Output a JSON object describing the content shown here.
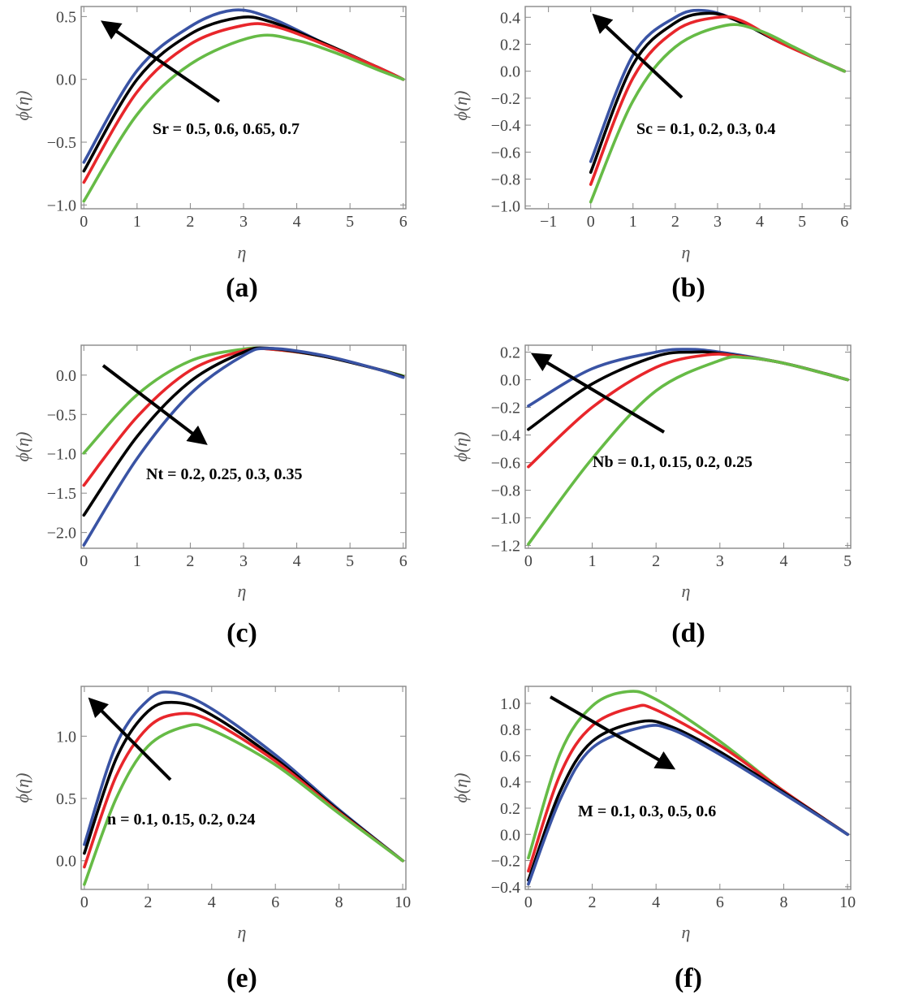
{
  "colors": {
    "blue": "#3953a4",
    "black": "#000000",
    "red": "#e8262b",
    "green": "#66bb46"
  },
  "chart_data": [
    {
      "type": "line",
      "caption": "(a)",
      "xlabel": "η",
      "ylabel": "ϕ(η)",
      "annotation": "Sr = 0.5, 0.6, 0.65, 0.7",
      "arrow_direction": "up-left",
      "xlim": [
        -0.05,
        6.05
      ],
      "ylim": [
        -1.03,
        0.58
      ],
      "xticks": [
        0,
        1,
        2,
        3,
        4,
        5,
        6
      ],
      "xtick_labels": [
        "0",
        "1",
        "2",
        "3",
        "4",
        "5",
        "6"
      ],
      "yticks": [
        -1.0,
        -0.5,
        0.0,
        0.5
      ],
      "ytick_labels": [
        "−1.0",
        "−0.5",
        "0.0",
        "0.5"
      ],
      "series": [
        {
          "name": "Sr = 0.5",
          "color": "blue",
          "points": [
            [
              0,
              -0.66
            ],
            [
              1,
              0.07
            ],
            [
              2,
              0.42
            ],
            [
              2.8,
              0.55
            ],
            [
              3.5,
              0.49
            ],
            [
              4.5,
              0.29
            ],
            [
              5.5,
              0.1
            ],
            [
              6,
              0.0
            ]
          ]
        },
        {
          "name": "Sr = 0.6",
          "color": "black",
          "points": [
            [
              0,
              -0.73
            ],
            [
              1,
              0.0
            ],
            [
              2,
              0.36
            ],
            [
              2.9,
              0.49
            ],
            [
              3.5,
              0.46
            ],
            [
              4.5,
              0.29
            ],
            [
              5.5,
              0.1
            ],
            [
              6,
              0.0
            ]
          ]
        },
        {
          "name": "Sr = 0.65",
          "color": "red",
          "points": [
            [
              0,
              -0.82
            ],
            [
              1,
              -0.1
            ],
            [
              2,
              0.28
            ],
            [
              3.0,
              0.43
            ],
            [
              3.6,
              0.42
            ],
            [
              4.5,
              0.28
            ],
            [
              5.5,
              0.1
            ],
            [
              6,
              0.0
            ]
          ]
        },
        {
          "name": "Sr = 0.7",
          "color": "green",
          "points": [
            [
              0,
              -0.97
            ],
            [
              1,
              -0.28
            ],
            [
              2,
              0.12
            ],
            [
              3.2,
              0.34
            ],
            [
              4.0,
              0.31
            ],
            [
              4.8,
              0.2
            ],
            [
              5.5,
              0.08
            ],
            [
              6,
              0.0
            ]
          ]
        }
      ]
    },
    {
      "type": "line",
      "caption": "(b)",
      "xlabel": "η",
      "ylabel": "ϕ(η)",
      "annotation": "Sc = 0.1, 0.2, 0.3, 0.4",
      "arrow_direction": "up-left",
      "xlim": [
        -1.55,
        6.15
      ],
      "ylim": [
        -1.02,
        0.48
      ],
      "xticks": [
        -1,
        0,
        1,
        2,
        3,
        4,
        5,
        6
      ],
      "xtick_labels": [
        "−1",
        "0",
        "1",
        "2",
        "3",
        "4",
        "5",
        "6"
      ],
      "yticks": [
        -1.0,
        -0.8,
        -0.6,
        -0.4,
        -0.2,
        0.0,
        0.2,
        0.4
      ],
      "ytick_labels": [
        "−1.0",
        "−0.8",
        "−0.6",
        "−0.4",
        "−0.2",
        "0.0",
        "0.2",
        "0.4"
      ],
      "series": [
        {
          "name": "Sc = 0.1",
          "color": "blue",
          "points": [
            [
              0,
              -0.67
            ],
            [
              1,
              0.12
            ],
            [
              2,
              0.4
            ],
            [
              2.7,
              0.45
            ],
            [
              3.5,
              0.37
            ],
            [
              4.5,
              0.21
            ],
            [
              5.5,
              0.07
            ],
            [
              6,
              0.0
            ]
          ]
        },
        {
          "name": "Sc = 0.2",
          "color": "black",
          "points": [
            [
              0,
              -0.75
            ],
            [
              1,
              0.05
            ],
            [
              2,
              0.36
            ],
            [
              2.8,
              0.43
            ],
            [
              3.5,
              0.37
            ],
            [
              4.5,
              0.21
            ],
            [
              5.5,
              0.07
            ],
            [
              6,
              0.0
            ]
          ]
        },
        {
          "name": "Sc = 0.3",
          "color": "red",
          "points": [
            [
              0,
              -0.84
            ],
            [
              1,
              -0.05
            ],
            [
              2,
              0.3
            ],
            [
              3.0,
              0.4
            ],
            [
              3.6,
              0.37
            ],
            [
              4.5,
              0.21
            ],
            [
              5.5,
              0.07
            ],
            [
              6,
              0.0
            ]
          ]
        },
        {
          "name": "Sc = 0.4",
          "color": "green",
          "points": [
            [
              0,
              -0.97
            ],
            [
              1,
              -0.22
            ],
            [
              2,
              0.18
            ],
            [
              3.2,
              0.34
            ],
            [
              4.0,
              0.3
            ],
            [
              4.8,
              0.18
            ],
            [
              5.5,
              0.07
            ],
            [
              6,
              0.0
            ]
          ]
        }
      ]
    },
    {
      "type": "line",
      "caption": "(c)",
      "xlabel": "η",
      "ylabel": "ϕ(η)",
      "annotation": "Nt = 0.2, 0.25, 0.3, 0.35",
      "arrow_direction": "down-right",
      "xlim": [
        -0.05,
        6.05
      ],
      "ylim": [
        -2.2,
        0.38
      ],
      "xticks": [
        0,
        1,
        2,
        3,
        4,
        5,
        6
      ],
      "xtick_labels": [
        "0",
        "1",
        "2",
        "3",
        "4",
        "5",
        "6"
      ],
      "yticks": [
        -2.0,
        -1.5,
        -1.0,
        -0.5,
        0.0
      ],
      "ytick_labels": [
        "−2.0",
        "−1.5",
        "−1.0",
        "−0.5",
        "0.0"
      ],
      "series": [
        {
          "name": "Nt = 0.2",
          "color": "green",
          "points": [
            [
              0,
              -0.99
            ],
            [
              1,
              -0.25
            ],
            [
              2,
              0.18
            ],
            [
              3,
              0.33
            ],
            [
              3.5,
              0.33
            ],
            [
              4.5,
              0.24
            ],
            [
              5.5,
              0.08
            ],
            [
              6,
              -0.01
            ]
          ]
        },
        {
          "name": "Nt = 0.25",
          "color": "red",
          "points": [
            [
              0,
              -1.4
            ],
            [
              1,
              -0.53
            ],
            [
              2,
              0.06
            ],
            [
              3,
              0.31
            ],
            [
              3.5,
              0.33
            ],
            [
              4.5,
              0.24
            ],
            [
              5.5,
              0.08
            ],
            [
              6,
              -0.02
            ]
          ]
        },
        {
          "name": "Nt = 0.3",
          "color": "black",
          "points": [
            [
              0,
              -1.78
            ],
            [
              1,
              -0.78
            ],
            [
              2,
              -0.08
            ],
            [
              3,
              0.29
            ],
            [
              3.5,
              0.34
            ],
            [
              4.5,
              0.24
            ],
            [
              5.5,
              0.08
            ],
            [
              6,
              -0.02
            ]
          ]
        },
        {
          "name": "Nt = 0.35",
          "color": "blue",
          "points": [
            [
              0,
              -2.16
            ],
            [
              1,
              -1.06
            ],
            [
              2,
              -0.24
            ],
            [
              3,
              0.25
            ],
            [
              3.5,
              0.34
            ],
            [
              4.5,
              0.25
            ],
            [
              5.5,
              0.08
            ],
            [
              6,
              -0.03
            ]
          ]
        }
      ]
    },
    {
      "type": "line",
      "caption": "(d)",
      "xlabel": "η",
      "ylabel": "ϕ(η)",
      "annotation": "Nb = 0.1, 0.15, 0.2, 0.25",
      "arrow_direction": "up-left",
      "xlim": [
        -0.05,
        5.05
      ],
      "ylim": [
        -1.22,
        0.25
      ],
      "xticks": [
        0,
        1,
        2,
        3,
        4,
        5
      ],
      "xtick_labels": [
        "0",
        "1",
        "2",
        "3",
        "4",
        "5"
      ],
      "yticks": [
        -1.2,
        -1.0,
        -0.8,
        -0.6,
        -0.4,
        -0.2,
        0.0,
        0.2
      ],
      "ytick_labels": [
        "−1.2",
        "−1.0",
        "−0.8",
        "−0.6",
        "−0.4",
        "−0.2",
        "0.0",
        "0.2"
      ],
      "series": [
        {
          "name": "Nb = 0.1",
          "color": "blue",
          "points": [
            [
              0,
              -0.19
            ],
            [
              1,
              0.08
            ],
            [
              2,
              0.2
            ],
            [
              2.5,
              0.22
            ],
            [
              3,
              0.2
            ],
            [
              4,
              0.12
            ],
            [
              5,
              0.0
            ]
          ]
        },
        {
          "name": "Nb = 0.15",
          "color": "black",
          "points": [
            [
              0,
              -0.36
            ],
            [
              1,
              -0.03
            ],
            [
              2,
              0.17
            ],
            [
              2.6,
              0.2
            ],
            [
              3,
              0.19
            ],
            [
              4,
              0.12
            ],
            [
              5,
              0.0
            ]
          ]
        },
        {
          "name": "Nb = 0.2",
          "color": "red",
          "points": [
            [
              0,
              -0.63
            ],
            [
              1,
              -0.2
            ],
            [
              2,
              0.09
            ],
            [
              2.8,
              0.18
            ],
            [
              3.3,
              0.17
            ],
            [
              4,
              0.12
            ],
            [
              5,
              0.0
            ]
          ]
        },
        {
          "name": "Nb = 0.25",
          "color": "green",
          "points": [
            [
              0,
              -1.19
            ],
            [
              1,
              -0.57
            ],
            [
              2,
              -0.08
            ],
            [
              3,
              0.14
            ],
            [
              3.4,
              0.16
            ],
            [
              4,
              0.12
            ],
            [
              5,
              0.0
            ]
          ]
        }
      ]
    },
    {
      "type": "line",
      "caption": "(e)",
      "xlabel": "η",
      "ylabel": "ϕ(η)",
      "annotation": "n = 0.1, 0.15, 0.2, 0.24",
      "arrow_direction": "up-left",
      "xlim": [
        -0.1,
        10.1
      ],
      "ylim": [
        -0.23,
        1.4
      ],
      "xticks": [
        0,
        2,
        4,
        6,
        8,
        10
      ],
      "xtick_labels": [
        "0",
        "2",
        "4",
        "6",
        "8",
        "10"
      ],
      "yticks": [
        0.0,
        0.5,
        1.0
      ],
      "ytick_labels": [
        "0.0",
        "0.5",
        "1.0"
      ],
      "series": [
        {
          "name": "n = 0.1",
          "color": "blue",
          "points": [
            [
              0,
              0.13
            ],
            [
              1,
              0.93
            ],
            [
              2,
              1.29
            ],
            [
              2.8,
              1.35
            ],
            [
              4,
              1.22
            ],
            [
              6,
              0.85
            ],
            [
              8,
              0.41
            ],
            [
              10,
              0.0
            ]
          ]
        },
        {
          "name": "n = 0.15",
          "color": "black",
          "points": [
            [
              0,
              0.06
            ],
            [
              1,
              0.82
            ],
            [
              2,
              1.2
            ],
            [
              2.9,
              1.27
            ],
            [
              4,
              1.17
            ],
            [
              6,
              0.82
            ],
            [
              8,
              0.4
            ],
            [
              10,
              0.0
            ]
          ]
        },
        {
          "name": "n = 0.2",
          "color": "red",
          "points": [
            [
              0,
              -0.05
            ],
            [
              1,
              0.68
            ],
            [
              2,
              1.07
            ],
            [
              3.0,
              1.18
            ],
            [
              4,
              1.12
            ],
            [
              6,
              0.8
            ],
            [
              8,
              0.39
            ],
            [
              10,
              0.0
            ]
          ]
        },
        {
          "name": "n = 0.24",
          "color": "green",
          "points": [
            [
              0,
              -0.19
            ],
            [
              1,
              0.5
            ],
            [
              2,
              0.92
            ],
            [
              3.2,
              1.08
            ],
            [
              4,
              1.05
            ],
            [
              6,
              0.77
            ],
            [
              8,
              0.38
            ],
            [
              10,
              0.0
            ]
          ]
        }
      ]
    },
    {
      "type": "line",
      "caption": "(f)",
      "xlabel": "η",
      "ylabel": "ϕ(η)",
      "annotation": "M = 0.1, 0.3, 0.5, 0.6",
      "arrow_direction": "down-right",
      "xlim": [
        -0.1,
        10.1
      ],
      "ylim": [
        -0.42,
        1.13
      ],
      "xticks": [
        0,
        2,
        4,
        6,
        8,
        10
      ],
      "xtick_labels": [
        "0",
        "2",
        "4",
        "6",
        "8",
        "10"
      ],
      "yticks": [
        -0.4,
        -0.2,
        0.0,
        0.2,
        0.4,
        0.6,
        0.8,
        1.0
      ],
      "ytick_labels": [
        "−0.4",
        "−0.2",
        "0.0",
        "0.2",
        "0.4",
        "0.6",
        "0.8",
        "1.0"
      ],
      "series": [
        {
          "name": "M = 0.1",
          "color": "green",
          "points": [
            [
              0,
              -0.18
            ],
            [
              1,
              0.62
            ],
            [
              2,
              0.98
            ],
            [
              3.1,
              1.09
            ],
            [
              4,
              1.03
            ],
            [
              6,
              0.71
            ],
            [
              8,
              0.33
            ],
            [
              10,
              0.0
            ]
          ]
        },
        {
          "name": "M = 0.3",
          "color": "red",
          "points": [
            [
              0,
              -0.28
            ],
            [
              1,
              0.46
            ],
            [
              2,
              0.83
            ],
            [
              3.3,
              0.97
            ],
            [
              4,
              0.95
            ],
            [
              6,
              0.68
            ],
            [
              8,
              0.33
            ],
            [
              10,
              0.0
            ]
          ]
        },
        {
          "name": "M = 0.5",
          "color": "black",
          "points": [
            [
              0,
              -0.35
            ],
            [
              1,
              0.33
            ],
            [
              2,
              0.71
            ],
            [
              3.5,
              0.86
            ],
            [
              4.5,
              0.82
            ],
            [
              6,
              0.63
            ],
            [
              8,
              0.32
            ],
            [
              10,
              0.0
            ]
          ]
        },
        {
          "name": "M = 0.6",
          "color": "blue",
          "points": [
            [
              0,
              -0.38
            ],
            [
              1,
              0.27
            ],
            [
              2,
              0.66
            ],
            [
              3.6,
              0.82
            ],
            [
              4.5,
              0.8
            ],
            [
              6,
              0.61
            ],
            [
              8,
              0.31
            ],
            [
              10,
              0.0
            ]
          ]
        }
      ]
    }
  ]
}
